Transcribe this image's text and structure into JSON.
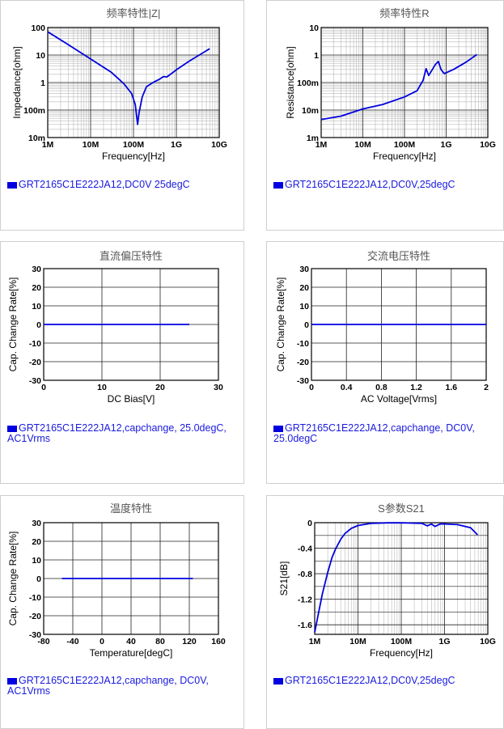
{
  "chart_data": [
    {
      "id": "c1",
      "type": "line",
      "title": "频率特性|Z|",
      "xlabel": "Frequency[Hz]",
      "ylabel": "Impedance[ohm]",
      "xscale": "log",
      "yscale": "log",
      "xlim": [
        1000000,
        10000000000
      ],
      "ylim": [
        0.01,
        100
      ],
      "xticks": [
        "1M",
        "10M",
        "100M",
        "1G",
        "10G"
      ],
      "yticks": [
        "10m",
        "100m",
        "1",
        "10",
        "100"
      ],
      "grid": true,
      "series": [
        {
          "name": "",
          "x": [
            1000000,
            3000000,
            10000000,
            30000000,
            60000000,
            90000000,
            110000000,
            125000000,
            135000000,
            160000000,
            200000000,
            300000000,
            400000000,
            500000000,
            600000000,
            700000000,
            1000000000,
            2000000000,
            6000000000
          ],
          "y": [
            70,
            24,
            7.2,
            2.4,
            0.9,
            0.4,
            0.16,
            0.03,
            0.08,
            0.3,
            0.7,
            1.05,
            1.3,
            1.65,
            1.6,
            1.9,
            2.9,
            6.0,
            17
          ]
        }
      ],
      "legend": "GRT2165C1E222JA12,DC0V 25degC",
      "color": "#0000e0"
    },
    {
      "id": "c2",
      "type": "line",
      "title": "频率特性R",
      "xlabel": "Frequency[Hz]",
      "ylabel": "Resistance[ohm]",
      "xscale": "log",
      "yscale": "log",
      "xlim": [
        1000000,
        10000000000
      ],
      "ylim": [
        0.001,
        10
      ],
      "xticks": [
        "1M",
        "10M",
        "100M",
        "1G",
        "10G"
      ],
      "yticks": [
        "1m",
        "10m",
        "100m",
        "1",
        "10"
      ],
      "grid": true,
      "series": [
        {
          "name": "",
          "x": [
            1000000,
            3000000,
            10000000,
            30000000,
            100000000,
            200000000,
            280000000,
            330000000,
            380000000,
            450000000,
            550000000,
            650000000,
            750000000,
            900000000,
            1500000000,
            3000000000,
            5500000000
          ],
          "y": [
            0.0045,
            0.006,
            0.011,
            0.016,
            0.03,
            0.05,
            0.12,
            0.32,
            0.18,
            0.27,
            0.45,
            0.58,
            0.3,
            0.21,
            0.3,
            0.55,
            1.05
          ]
        }
      ],
      "legend": "GRT2165C1E222JA12,DC0V,25degC",
      "color": "#0000e0"
    },
    {
      "id": "c3",
      "type": "line",
      "title": "直流偏压特性",
      "xlabel": "DC Bias[V]",
      "ylabel": "Cap. Change Rate[%]",
      "xlim": [
        0,
        30
      ],
      "ylim": [
        -30,
        30
      ],
      "xticks": [
        "0",
        "10",
        "20",
        "30"
      ],
      "yticks": [
        "-30",
        "-20",
        "-10",
        "0",
        "10",
        "20",
        "30"
      ],
      "grid": true,
      "series": [
        {
          "name": "",
          "x": [
            0,
            25
          ],
          "y": [
            0,
            0
          ]
        }
      ],
      "legend": "GRT2165C1E222JA12,capchange, 25.0degC, AC1Vrms",
      "color": "#0000e0"
    },
    {
      "id": "c4",
      "type": "line",
      "title": "交流电压特性",
      "xlabel": "AC Voltage[Vrms]",
      "ylabel": "Cap. Change Rate[%]",
      "xlim": [
        0,
        2
      ],
      "ylim": [
        -30,
        30
      ],
      "xticks": [
        "0",
        "0.4",
        "0.8",
        "1.2",
        "1.6",
        "2"
      ],
      "yticks": [
        "-30",
        "-20",
        "-10",
        "0",
        "10",
        "20",
        "30"
      ],
      "grid": true,
      "series": [
        {
          "name": "",
          "x": [
            0,
            2
          ],
          "y": [
            0,
            0
          ]
        }
      ],
      "legend": "GRT2165C1E222JA12,capchange, DC0V, 25.0degC",
      "color": "#0000e0"
    },
    {
      "id": "c5",
      "type": "line",
      "title": "温度特性",
      "xlabel": "Temperature[degC]",
      "ylabel": "Cap. Change Rate[%]",
      "xlim": [
        -80,
        160
      ],
      "ylim": [
        -30,
        30
      ],
      "xticks": [
        "-80",
        "-40",
        "0",
        "40",
        "80",
        "120",
        "160"
      ],
      "yticks": [
        "-30",
        "-20",
        "-10",
        "0",
        "10",
        "20",
        "30"
      ],
      "grid": true,
      "series": [
        {
          "name": "",
          "x": [
            -55,
            125
          ],
          "y": [
            0,
            0
          ]
        }
      ],
      "legend": "GRT2165C1E222JA12,capchange, DC0V, AC1Vrms",
      "color": "#0000e0"
    },
    {
      "id": "c6",
      "type": "line",
      "title": "S参数S21",
      "xlabel": "Frequency[Hz]",
      "ylabel": "S21[dB]",
      "xscale": "log",
      "xlim": [
        1000000,
        10000000000
      ],
      "ylim": [
        -1.75,
        0
      ],
      "xticks": [
        "1M",
        "10M",
        "100M",
        "1G",
        "10G"
      ],
      "yticks": [
        "-1.6",
        "-1.2",
        "-0.8",
        "-0.4",
        "0"
      ],
      "grid": true,
      "series": [
        {
          "name": "",
          "x": [
            1000000,
            1200000,
            1500000,
            2000000,
            2500000,
            3000000,
            4000000,
            5000000,
            7000000,
            10000000,
            20000000,
            50000000,
            100000000,
            300000000,
            400000000,
            500000000,
            600000000,
            800000000,
            1000000000,
            2000000000,
            4000000000,
            5800000000
          ],
          "y": [
            -1.72,
            -1.45,
            -1.12,
            -0.78,
            -0.55,
            -0.42,
            -0.26,
            -0.17,
            -0.09,
            -0.045,
            -0.012,
            -0.003,
            -0.002,
            -0.01,
            -0.05,
            -0.02,
            -0.06,
            -0.02,
            -0.02,
            -0.03,
            -0.08,
            -0.19
          ]
        }
      ],
      "legend": "GRT2165C1E222JA12,DC0V,25degC",
      "color": "#0000e0"
    }
  ]
}
